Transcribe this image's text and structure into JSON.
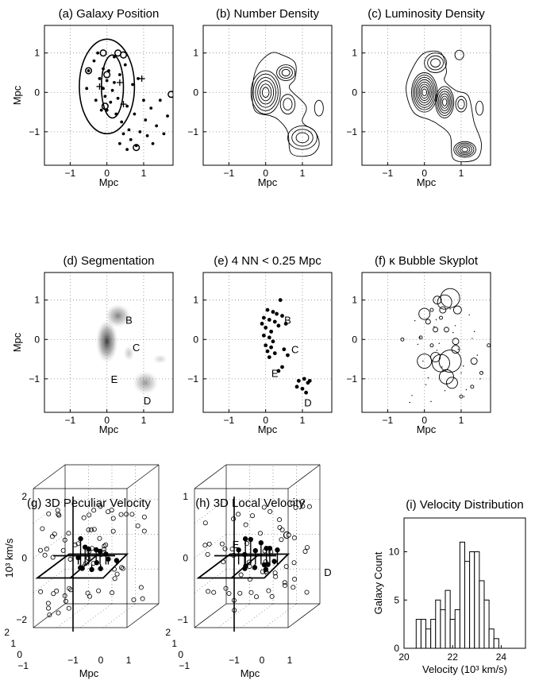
{
  "panels": {
    "a": {
      "title": "(a)  Galaxy  Position",
      "xlabel": "Mpc",
      "ylabel": "Mpc"
    },
    "b": {
      "title": "(b)  Number Density",
      "xlabel": "Mpc"
    },
    "c": {
      "title": "(c)  Luminosity Density",
      "xlabel": "Mpc"
    },
    "d": {
      "title": "(d)  Segmentation",
      "xlabel": "Mpc",
      "ylabel": "Mpc"
    },
    "e": {
      "title": "(e)  4 NN < 0.25 Mpc",
      "xlabel": "Mpc"
    },
    "f": {
      "title": "(f)  κ Bubble Skyplot",
      "xlabel": "Mpc"
    },
    "g": {
      "title": "(g) 3D Peculiar Velocity",
      "xlabel": "Mpc",
      "ylabel": "10³ km/s"
    },
    "h": {
      "title": "(h) 3D Local Velocity",
      "xlabel": "Mpc"
    },
    "i": {
      "title": "(i) Velocity Distribution",
      "xlabel": "Velocity (10³ km/s)",
      "ylabel": "Galaxy Count"
    }
  },
  "region_labels": [
    "B",
    "C",
    "E",
    "D"
  ],
  "region_labels_h": [
    "E",
    "C",
    "D"
  ],
  "sky_ticks": {
    "x": [
      "−1",
      "0",
      "1"
    ],
    "y": [
      "1",
      "0",
      "−1"
    ]
  },
  "ticks_3d": {
    "z_g": [
      "2",
      "0",
      "−2"
    ],
    "z_h": [
      "1",
      "0",
      "−1"
    ],
    "y": [
      "2",
      "1",
      "0",
      "−1"
    ],
    "x": [
      "−1",
      "0",
      "1"
    ]
  },
  "hist_ticks": {
    "x": [
      "20",
      "22",
      "24"
    ],
    "y": [
      "0",
      "5",
      "10"
    ]
  },
  "chart_data": [
    {
      "type": "scatter",
      "panel": "a",
      "xlim": [
        -1.7,
        1.8
      ],
      "ylim": [
        -1.85,
        1.7
      ],
      "grid": true,
      "ellipses": [
        {
          "cx": 0,
          "cy": 0.15,
          "rx": 0.75,
          "ry": 1.2
        },
        {
          "cx": 0.15,
          "cy": 0.15,
          "rx": 0.3,
          "ry": 0.8
        }
      ],
      "points": [
        [
          -0.55,
          0.1
        ],
        [
          -0.5,
          0.55
        ],
        [
          -0.35,
          0.8
        ],
        [
          -0.25,
          1.0
        ],
        [
          -0.2,
          0.35
        ],
        [
          -0.15,
          -0.45
        ],
        [
          -0.1,
          0.1
        ],
        [
          -0.05,
          -0.1
        ],
        [
          0.0,
          0.3
        ],
        [
          0.05,
          0.55
        ],
        [
          0.1,
          -0.25
        ],
        [
          0.15,
          0.05
        ],
        [
          0.2,
          0.9
        ],
        [
          0.25,
          -0.55
        ],
        [
          0.3,
          -0.15
        ],
        [
          0.35,
          0.45
        ],
        [
          0.4,
          -0.75
        ],
        [
          0.45,
          -1.05
        ],
        [
          0.5,
          0.7
        ],
        [
          0.55,
          -0.35
        ],
        [
          0.6,
          -0.95
        ],
        [
          0.65,
          -1.2
        ],
        [
          0.7,
          0.2
        ],
        [
          0.75,
          -0.55
        ],
        [
          0.8,
          -1.35
        ],
        [
          0.85,
          0.35
        ],
        [
          0.9,
          -1.0
        ],
        [
          1.0,
          -0.2
        ],
        [
          1.05,
          -0.7
        ],
        [
          1.1,
          -1.1
        ],
        [
          1.2,
          -0.4
        ],
        [
          1.25,
          -1.3
        ],
        [
          1.35,
          -0.85
        ],
        [
          1.45,
          -0.2
        ],
        [
          1.55,
          -1.05
        ],
        [
          1.65,
          -0.6
        ],
        [
          0.0,
          -0.45
        ],
        [
          -0.1,
          0.6
        ],
        [
          0.2,
          0.25
        ],
        [
          -0.3,
          -0.2
        ],
        [
          0.35,
          -1.3
        ],
        [
          0.55,
          -1.45
        ]
      ],
      "circles": [
        [
          -0.5,
          0.55
        ],
        [
          -0.1,
          1.0
        ],
        [
          0.3,
          1.0
        ],
        [
          0.45,
          0.95
        ],
        [
          0.8,
          -1.4
        ],
        [
          1.75,
          -0.05
        ],
        [
          0.0,
          0.45
        ],
        [
          -0.05,
          -0.35
        ]
      ],
      "crosses": [
        [
          0.35,
          0.25
        ],
        [
          0.95,
          0.35
        ],
        [
          0.45,
          -0.3
        ],
        [
          -0.2,
          0.15
        ]
      ]
    },
    {
      "type": "contour",
      "panel": "b",
      "xlim": [
        -1.7,
        1.8
      ],
      "ylim": [
        -1.85,
        1.7
      ],
      "grid": true,
      "peaks": [
        {
          "x": 0.0,
          "y": 0.0,
          "rx": 0.4,
          "ry": 0.55,
          "levels": 6
        },
        {
          "x": 0.55,
          "y": 0.5,
          "rx": 0.25,
          "ry": 0.2,
          "levels": 3
        },
        {
          "x": 1.0,
          "y": -1.15,
          "rx": 0.4,
          "ry": 0.3,
          "levels": 3
        },
        {
          "x": 1.45,
          "y": -0.4,
          "rx": 0.12,
          "ry": 0.2,
          "levels": 1
        },
        {
          "x": 0.6,
          "y": -0.3,
          "rx": 0.2,
          "ry": 0.25,
          "levels": 2
        }
      ],
      "outline": [
        [
          -0.35,
          0.2
        ],
        [
          -0.2,
          0.7
        ],
        [
          0.15,
          1.0
        ],
        [
          0.45,
          0.95
        ],
        [
          0.8,
          0.75
        ],
        [
          0.8,
          0.35
        ],
        [
          0.65,
          0.1
        ],
        [
          1.1,
          -0.35
        ],
        [
          1.0,
          -0.75
        ],
        [
          1.35,
          -1.0
        ],
        [
          1.45,
          -1.35
        ],
        [
          1.2,
          -1.6
        ],
        [
          0.7,
          -1.55
        ],
        [
          0.6,
          -1.0
        ],
        [
          0.35,
          -0.7
        ],
        [
          0.15,
          -0.6
        ],
        [
          -0.3,
          -0.45
        ]
      ]
    },
    {
      "type": "contour",
      "panel": "c",
      "xlim": [
        -1.7,
        1.8
      ],
      "ylim": [
        -1.85,
        1.7
      ],
      "grid": true,
      "peaks": [
        {
          "x": 0.0,
          "y": 0.0,
          "rx": 0.35,
          "ry": 0.5,
          "levels": 8
        },
        {
          "x": 0.55,
          "y": -0.25,
          "rx": 0.25,
          "ry": 0.4,
          "levels": 6
        },
        {
          "x": 1.1,
          "y": -1.45,
          "rx": 0.3,
          "ry": 0.2,
          "levels": 5
        },
        {
          "x": 0.3,
          "y": 0.75,
          "rx": 0.3,
          "ry": 0.25,
          "levels": 3
        },
        {
          "x": 1.0,
          "y": -0.3,
          "rx": 0.15,
          "ry": 0.2,
          "levels": 2
        },
        {
          "x": 1.5,
          "y": -0.4,
          "rx": 0.1,
          "ry": 0.18,
          "levels": 1
        },
        {
          "x": 0.95,
          "y": 0.95,
          "rx": 0.12,
          "ry": 0.12,
          "levels": 1
        }
      ],
      "outline": [
        [
          -0.5,
          0.1
        ],
        [
          -0.3,
          0.65
        ],
        [
          0.0,
          1.0
        ],
        [
          0.45,
          1.0
        ],
        [
          0.6,
          0.55
        ],
        [
          0.55,
          0.3
        ],
        [
          0.85,
          0.05
        ],
        [
          1.2,
          -0.1
        ],
        [
          1.35,
          -0.75
        ],
        [
          1.55,
          -1.3
        ],
        [
          1.4,
          -1.7
        ],
        [
          0.8,
          -1.7
        ],
        [
          0.7,
          -1.1
        ],
        [
          0.35,
          -0.8
        ],
        [
          0.15,
          -0.7
        ],
        [
          -0.3,
          -0.5
        ]
      ]
    },
    {
      "type": "heatmap",
      "panel": "d",
      "xlim": [
        -1.7,
        1.8
      ],
      "ylim": [
        -1.85,
        1.7
      ],
      "grid": true,
      "blobs": [
        {
          "x": 0.0,
          "y": -0.05,
          "rx": 0.3,
          "ry": 0.55,
          "shade": 0.85
        },
        {
          "x": 0.3,
          "y": 0.6,
          "rx": 0.35,
          "ry": 0.3,
          "shade": 0.55
        },
        {
          "x": 0.6,
          "y": -0.35,
          "rx": 0.15,
          "ry": 0.2,
          "shade": 0.25
        },
        {
          "x": 1.05,
          "y": -1.1,
          "rx": 0.35,
          "ry": 0.3,
          "shade": 0.45
        },
        {
          "x": 1.45,
          "y": -0.5,
          "rx": 0.2,
          "ry": 0.12,
          "shade": 0.2
        }
      ],
      "labels": [
        [
          0.6,
          0.5
        ],
        [
          0.8,
          -0.2
        ],
        [
          0.2,
          -1.0
        ],
        [
          1.1,
          -1.55
        ]
      ]
    },
    {
      "type": "scatter",
      "panel": "e",
      "xlim": [
        -1.7,
        1.8
      ],
      "ylim": [
        -1.85,
        1.7
      ],
      "grid": true,
      "points": [
        [
          0.4,
          1.0
        ],
        [
          0.05,
          0.75
        ],
        [
          0.2,
          0.7
        ],
        [
          0.3,
          0.65
        ],
        [
          -0.05,
          0.55
        ],
        [
          0.1,
          0.5
        ],
        [
          0.25,
          0.45
        ],
        [
          0.35,
          0.35
        ],
        [
          0.0,
          0.3
        ],
        [
          0.15,
          0.2
        ],
        [
          -0.05,
          0.1
        ],
        [
          0.1,
          0.05
        ],
        [
          0.2,
          -0.05
        ],
        [
          0.0,
          -0.15
        ],
        [
          0.15,
          -0.2
        ],
        [
          0.05,
          -0.3
        ],
        [
          0.25,
          -0.35
        ],
        [
          0.1,
          -0.45
        ],
        [
          0.45,
          0.6
        ],
        [
          0.55,
          0.4
        ],
        [
          0.5,
          -0.25
        ],
        [
          0.6,
          -0.4
        ],
        [
          0.45,
          -0.7
        ],
        [
          0.35,
          -0.8
        ],
        [
          0.9,
          -1.05
        ],
        [
          1.05,
          -1.0
        ],
        [
          1.15,
          -1.1
        ],
        [
          0.85,
          -1.2
        ],
        [
          1.0,
          -1.25
        ],
        [
          1.1,
          -1.35
        ],
        [
          1.2,
          -1.05
        ],
        [
          -0.1,
          0.4
        ]
      ],
      "labels": [
        [
          0.6,
          0.5
        ],
        [
          0.8,
          -0.25
        ],
        [
          0.25,
          -0.85
        ],
        [
          1.15,
          -1.6
        ]
      ]
    },
    {
      "type": "scatter",
      "panel": "f",
      "xlim": [
        -1.7,
        1.8
      ],
      "ylim": [
        -1.85,
        1.7
      ],
      "grid": true,
      "bubbles": [
        [
          0.0,
          0.65,
          7
        ],
        [
          0.35,
          1.0,
          5
        ],
        [
          0.55,
          0.95,
          9
        ],
        [
          0.5,
          0.75,
          4
        ],
        [
          0.7,
          1.05,
          12
        ],
        [
          0.9,
          0.75,
          5
        ],
        [
          0.1,
          0.45,
          3
        ],
        [
          0.3,
          0.25,
          3
        ],
        [
          0.6,
          0.25,
          3
        ],
        [
          0.85,
          -0.05,
          4
        ],
        [
          0.0,
          -0.55,
          9
        ],
        [
          0.3,
          -0.45,
          6
        ],
        [
          0.45,
          -0.6,
          11
        ],
        [
          0.7,
          -0.55,
          14
        ],
        [
          0.85,
          -0.25,
          5
        ],
        [
          0.6,
          -0.95,
          9
        ],
        [
          0.75,
          -1.1,
          7
        ],
        [
          1.35,
          -0.55,
          4
        ],
        [
          1.75,
          -0.15,
          2
        ],
        [
          1.55,
          -0.85,
          2
        ],
        [
          -0.6,
          0.0,
          2
        ],
        [
          -0.1,
          0.05,
          2
        ],
        [
          0.2,
          -0.15,
          2
        ],
        [
          1.0,
          -1.45,
          2
        ],
        [
          1.3,
          -1.2,
          2
        ],
        [
          0.45,
          0.55,
          2
        ],
        [
          0.2,
          0.75,
          2
        ]
      ]
    },
    {
      "type": "scatter",
      "panel": "g",
      "zlim": [
        -2,
        2
      ],
      "open_points": 70,
      "filled_points": 14
    },
    {
      "type": "scatter",
      "panel": "h",
      "zlim": [
        -1,
        1
      ],
      "open_points": 60,
      "filled_points": 16
    },
    {
      "type": "bar",
      "panel": "i",
      "xlabel": "Velocity (10³ km/s)",
      "ylabel": "Galaxy Count",
      "xlim": [
        20,
        25
      ],
      "ylim": [
        0,
        13.5
      ],
      "bin_width": 0.2,
      "bin_starts": [
        20.5,
        20.7,
        20.9,
        21.1,
        21.3,
        21.5,
        21.7,
        21.9,
        22.1,
        22.3,
        22.5,
        22.7,
        22.9,
        23.1,
        23.3,
        23.5,
        23.7
      ],
      "values": [
        3,
        3,
        2,
        3,
        5,
        4,
        6,
        3,
        4,
        11,
        9,
        10,
        10,
        7,
        5,
        2,
        1
      ]
    }
  ]
}
